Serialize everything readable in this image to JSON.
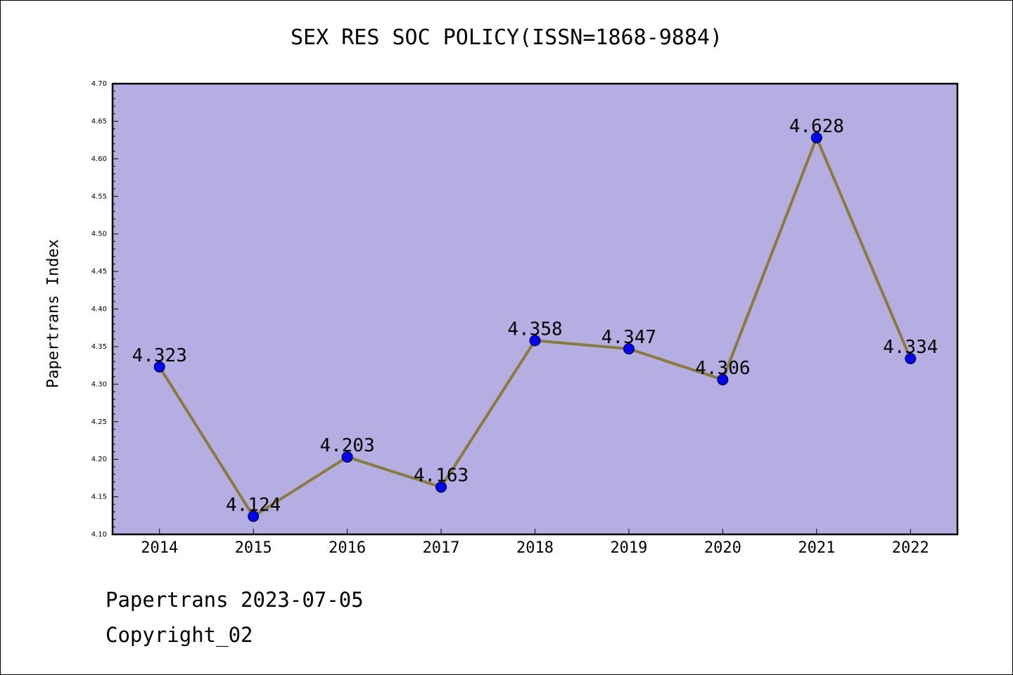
{
  "title": "SEX RES SOC POLICY(ISSN=1868-9884)",
  "ylabel": "Papertrans Index",
  "footer": {
    "line1": "Papertrans 2023-07-05",
    "line2": "Copyright_02"
  },
  "colors": {
    "plot_background": "#b5aee2",
    "line": "#8b7b3a",
    "marker": "#0000ff"
  },
  "chart_data": {
    "type": "line",
    "title": "SEX RES SOC POLICY(ISSN=1868-9884)",
    "xlabel": "",
    "ylabel": "Papertrans Index",
    "x": [
      "2014",
      "2015",
      "2016",
      "2017",
      "2018",
      "2019",
      "2020",
      "2021",
      "2022"
    ],
    "values": [
      4.323,
      4.124,
      4.203,
      4.163,
      4.358,
      4.347,
      4.306,
      4.628,
      4.334
    ],
    "data_labels": [
      "4.323",
      "4.124",
      "4.203",
      "4.163",
      "4.358",
      "4.347",
      "4.306",
      "4.628",
      "4.334"
    ],
    "ylim": [
      4.1,
      4.7
    ],
    "yticks": [
      "4.10",
      "4.15",
      "4.20",
      "4.25",
      "4.30",
      "4.35",
      "4.40",
      "4.45",
      "4.50",
      "4.55",
      "4.60",
      "4.65",
      "4.70"
    ],
    "grid": false,
    "legend": "none"
  }
}
